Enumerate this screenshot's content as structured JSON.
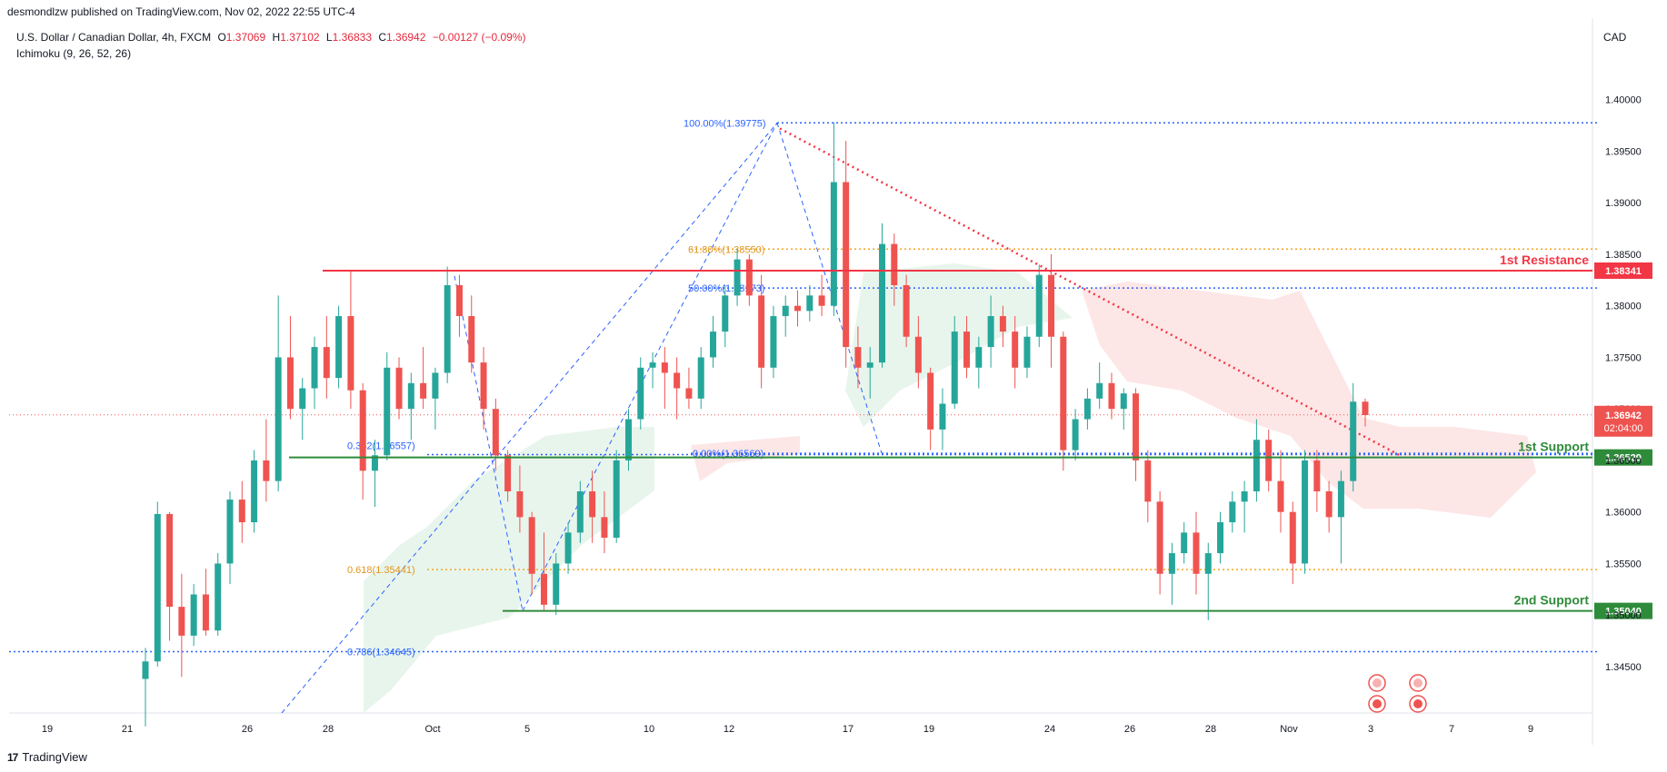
{
  "header": {
    "published_by": "desmondlzw published on TradingView.com, Nov 02, 2022 22:55 UTC-4",
    "symbol": "U.S. Dollar / Canadian Dollar, 4h, FXCM",
    "ohlc": [
      {
        "label": "O",
        "value": "1.37069"
      },
      {
        "label": "H",
        "value": "1.37102"
      },
      {
        "label": "L",
        "value": "1.36833"
      },
      {
        "label": "C",
        "value": "1.36942"
      }
    ],
    "change": "−0.00127 (−0.09%)",
    "indicator": "Ichimoku (9, 26, 52, 26)",
    "currency": "CAD"
  },
  "footer": {
    "brand": "TradingView"
  },
  "colors": {
    "up": "#26a69a",
    "down": "#ef5350",
    "resistance": "#f23645",
    "support": "#2e8b3a",
    "fib_blue": "#2962ff",
    "fib_orange": "#f5a623",
    "cloud_green": "#e6f4ea",
    "cloud_red": "#fde3e3"
  },
  "chart_data": {
    "type": "candlestick",
    "symbol": "USDCAD",
    "timeframe": "4h",
    "ylim": [
      1.3405,
      1.4035
    ],
    "y_ticks": [
      "1.40000",
      "1.39500",
      "1.39000",
      "1.38500",
      "1.38000",
      "1.37500",
      "1.37000",
      "1.36500",
      "1.36000",
      "1.35500",
      "1.35000",
      "1.34500"
    ],
    "x_ticks": [
      "19",
      "21",
      "26",
      "28",
      "Oct",
      "5",
      "10",
      "12",
      "17",
      "19",
      "24",
      "26",
      "28",
      "Nov",
      "3",
      "7",
      "9"
    ],
    "last_price": "1.36942",
    "countdown": "02:04:00",
    "levels": [
      {
        "label": "1st Resistance",
        "price": 1.38341,
        "tag": "1.38341",
        "kind": "resistance"
      },
      {
        "label": "1st Support",
        "price": 1.36529,
        "tag": "1.36529",
        "kind": "support"
      },
      {
        "label": "2nd Support",
        "price": 1.3504,
        "tag": "1.35040",
        "kind": "support"
      }
    ],
    "fib_labels": [
      {
        "text": "100.00%(1.39775)",
        "price": 1.39775,
        "color": "blue"
      },
      {
        "text": "61.80%(1.38550)",
        "price": 1.3855,
        "color": "orange"
      },
      {
        "text": "50.00%(1.38173)",
        "price": 1.38173,
        "color": "blue"
      },
      {
        "text": "0.00%(1.36569)",
        "price": 1.36569,
        "color": "blue"
      },
      {
        "text": "0.382(1.36557)",
        "price": 1.36557,
        "color": "blue"
      },
      {
        "text": "0.618(1.35441)",
        "price": 1.35441,
        "color": "orange"
      },
      {
        "text": "0.786(1.34645)",
        "price": 1.34645,
        "color": "blue"
      }
    ],
    "candles": [
      [
        1.3438,
        1.3468,
        1.3392,
        1.3455
      ],
      [
        1.3455,
        1.361,
        1.345,
        1.3598
      ],
      [
        1.3598,
        1.36,
        1.3475,
        1.3508
      ],
      [
        1.3508,
        1.354,
        1.344,
        1.348
      ],
      [
        1.348,
        1.353,
        1.347,
        1.352
      ],
      [
        1.352,
        1.3545,
        1.348,
        1.3485
      ],
      [
        1.3485,
        1.356,
        1.348,
        1.355
      ],
      [
        1.355,
        1.362,
        1.353,
        1.3612
      ],
      [
        1.3612,
        1.363,
        1.357,
        1.359
      ],
      [
        1.359,
        1.366,
        1.358,
        1.365
      ],
      [
        1.365,
        1.369,
        1.361,
        1.363
      ],
      [
        1.363,
        1.381,
        1.362,
        1.375
      ],
      [
        1.375,
        1.379,
        1.369,
        1.37
      ],
      [
        1.37,
        1.373,
        1.367,
        1.372
      ],
      [
        1.372,
        1.377,
        1.37,
        1.376
      ],
      [
        1.376,
        1.379,
        1.371,
        1.373
      ],
      [
        1.373,
        1.38,
        1.372,
        1.379
      ],
      [
        1.379,
        1.3835,
        1.37,
        1.3718
      ],
      [
        1.3718,
        1.3725,
        1.3612,
        1.364
      ],
      [
        1.364,
        1.367,
        1.3605,
        1.3655
      ],
      [
        1.3655,
        1.3755,
        1.365,
        1.374
      ],
      [
        1.374,
        1.375,
        1.369,
        1.37
      ],
      [
        1.37,
        1.3735,
        1.367,
        1.3725
      ],
      [
        1.3725,
        1.376,
        1.37,
        1.371
      ],
      [
        1.371,
        1.374,
        1.368,
        1.3735
      ],
      [
        1.3735,
        1.3838,
        1.3725,
        1.382
      ],
      [
        1.382,
        1.383,
        1.377,
        1.379
      ],
      [
        1.379,
        1.381,
        1.3735,
        1.3745
      ],
      [
        1.3745,
        1.376,
        1.368,
        1.37
      ],
      [
        1.37,
        1.371,
        1.364,
        1.3655
      ],
      [
        1.3655,
        1.366,
        1.361,
        1.362
      ],
      [
        1.362,
        1.3645,
        1.358,
        1.3595
      ],
      [
        1.3595,
        1.36,
        1.352,
        1.354
      ],
      [
        1.354,
        1.358,
        1.3505,
        1.351
      ],
      [
        1.351,
        1.356,
        1.35,
        1.355
      ],
      [
        1.355,
        1.359,
        1.354,
        1.358
      ],
      [
        1.358,
        1.363,
        1.357,
        1.362
      ],
      [
        1.362,
        1.364,
        1.357,
        1.3595
      ],
      [
        1.3595,
        1.362,
        1.356,
        1.3575
      ],
      [
        1.3575,
        1.366,
        1.357,
        1.365
      ],
      [
        1.365,
        1.37,
        1.364,
        1.369
      ],
      [
        1.369,
        1.375,
        1.368,
        1.374
      ],
      [
        1.374,
        1.3755,
        1.372,
        1.3745
      ],
      [
        1.3745,
        1.376,
        1.37,
        1.3735
      ],
      [
        1.3735,
        1.375,
        1.369,
        1.372
      ],
      [
        1.372,
        1.374,
        1.37,
        1.371
      ],
      [
        1.371,
        1.376,
        1.37,
        1.375
      ],
      [
        1.375,
        1.379,
        1.374,
        1.3775
      ],
      [
        1.3775,
        1.382,
        1.376,
        1.381
      ],
      [
        1.381,
        1.3855,
        1.38,
        1.3845
      ],
      [
        1.3845,
        1.385,
        1.38,
        1.381
      ],
      [
        1.381,
        1.383,
        1.372,
        1.374
      ],
      [
        1.374,
        1.38,
        1.373,
        1.379
      ],
      [
        1.379,
        1.381,
        1.377,
        1.38
      ],
      [
        1.38,
        1.3815,
        1.378,
        1.3795
      ],
      [
        1.3795,
        1.382,
        1.3785,
        1.381
      ],
      [
        1.381,
        1.383,
        1.379,
        1.38
      ],
      [
        1.38,
        1.3978,
        1.379,
        1.392
      ],
      [
        1.392,
        1.396,
        1.374,
        1.376
      ],
      [
        1.376,
        1.378,
        1.372,
        1.374
      ],
      [
        1.374,
        1.376,
        1.371,
        1.3745
      ],
      [
        1.3745,
        1.388,
        1.374,
        1.386
      ],
      [
        1.386,
        1.387,
        1.38,
        1.382
      ],
      [
        1.382,
        1.383,
        1.376,
        1.377
      ],
      [
        1.377,
        1.379,
        1.372,
        1.3735
      ],
      [
        1.3735,
        1.374,
        1.366,
        1.368
      ],
      [
        1.368,
        1.372,
        1.366,
        1.3705
      ],
      [
        1.3705,
        1.379,
        1.37,
        1.3775
      ],
      [
        1.3775,
        1.379,
        1.373,
        1.374
      ],
      [
        1.374,
        1.377,
        1.372,
        1.376
      ],
      [
        1.376,
        1.381,
        1.374,
        1.379
      ],
      [
        1.379,
        1.38,
        1.376,
        1.3775
      ],
      [
        1.3775,
        1.379,
        1.372,
        1.374
      ],
      [
        1.374,
        1.378,
        1.373,
        1.377
      ],
      [
        1.377,
        1.384,
        1.376,
        1.383
      ],
      [
        1.383,
        1.385,
        1.374,
        1.377
      ],
      [
        1.377,
        1.3775,
        1.364,
        1.366
      ],
      [
        1.366,
        1.37,
        1.365,
        1.369
      ],
      [
        1.369,
        1.372,
        1.368,
        1.371
      ],
      [
        1.371,
        1.3745,
        1.37,
        1.3725
      ],
      [
        1.3725,
        1.3735,
        1.369,
        1.37
      ],
      [
        1.37,
        1.372,
        1.368,
        1.3715
      ],
      [
        1.3715,
        1.372,
        1.363,
        1.365
      ],
      [
        1.365,
        1.366,
        1.359,
        1.361
      ],
      [
        1.361,
        1.362,
        1.352,
        1.354
      ],
      [
        1.354,
        1.357,
        1.351,
        1.356
      ],
      [
        1.356,
        1.359,
        1.355,
        1.358
      ],
      [
        1.358,
        1.36,
        1.352,
        1.354
      ],
      [
        1.354,
        1.357,
        1.3495,
        1.356
      ],
      [
        1.356,
        1.36,
        1.355,
        1.359
      ],
      [
        1.359,
        1.362,
        1.358,
        1.361
      ],
      [
        1.361,
        1.363,
        1.358,
        1.362
      ],
      [
        1.362,
        1.369,
        1.361,
        1.367
      ],
      [
        1.367,
        1.368,
        1.362,
        1.363
      ],
      [
        1.363,
        1.366,
        1.358,
        1.36
      ],
      [
        1.36,
        1.361,
        1.353,
        1.355
      ],
      [
        1.355,
        1.366,
        1.354,
        1.365
      ],
      [
        1.365,
        1.366,
        1.36,
        1.362
      ],
      [
        1.362,
        1.363,
        1.358,
        1.3595
      ],
      [
        1.3595,
        1.364,
        1.355,
        1.363
      ],
      [
        1.363,
        1.3725,
        1.362,
        1.3707
      ],
      [
        1.3707,
        1.371,
        1.3683,
        1.3694
      ]
    ]
  }
}
